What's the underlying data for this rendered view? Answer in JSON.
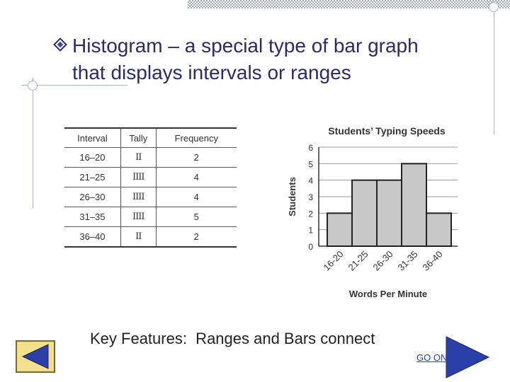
{
  "slide": {
    "title_line1": "Histogram – a special type of bar graph",
    "title_line2": "that displays intervals or ranges",
    "key_features": "Key Features:  Ranges and Bars connect",
    "go_on_label": "GO ON"
  },
  "table": {
    "headers": [
      "Interval",
      "Tally",
      "Frequency"
    ],
    "rows": [
      {
        "interval": "16–20",
        "tally": "II",
        "frequency": "2"
      },
      {
        "interval": "21–25",
        "tally": "IIII",
        "frequency": "4"
      },
      {
        "interval": "26–30",
        "tally": "IIII",
        "frequency": "4"
      },
      {
        "interval": "31–35",
        "tally": "IIII",
        "frequency": "5"
      },
      {
        "interval": "36–40",
        "tally": "II",
        "frequency": "2"
      }
    ]
  },
  "chart_data": {
    "type": "bar",
    "title": "Students’ Typing Speeds",
    "xlabel": "Words Per Minute",
    "ylabel": "Students",
    "categories": [
      "16-20",
      "21-25",
      "26-30",
      "31-35",
      "36-40"
    ],
    "values": [
      2,
      4,
      4,
      5,
      2
    ],
    "ylim": [
      0,
      6
    ],
    "yticks": [
      "0",
      "1",
      "2",
      "3",
      "4",
      "5",
      "6"
    ],
    "grid": true,
    "bar_color": "#c8c8c8"
  },
  "colors": {
    "title": "#2b2b6b",
    "accent_arrow": "#2c3ea8",
    "back_button": "#f2e08a"
  },
  "icons": {
    "title_bullet": "diamond-bullet-icon",
    "back": "back-arrow-icon",
    "next": "next-arrow-icon"
  }
}
